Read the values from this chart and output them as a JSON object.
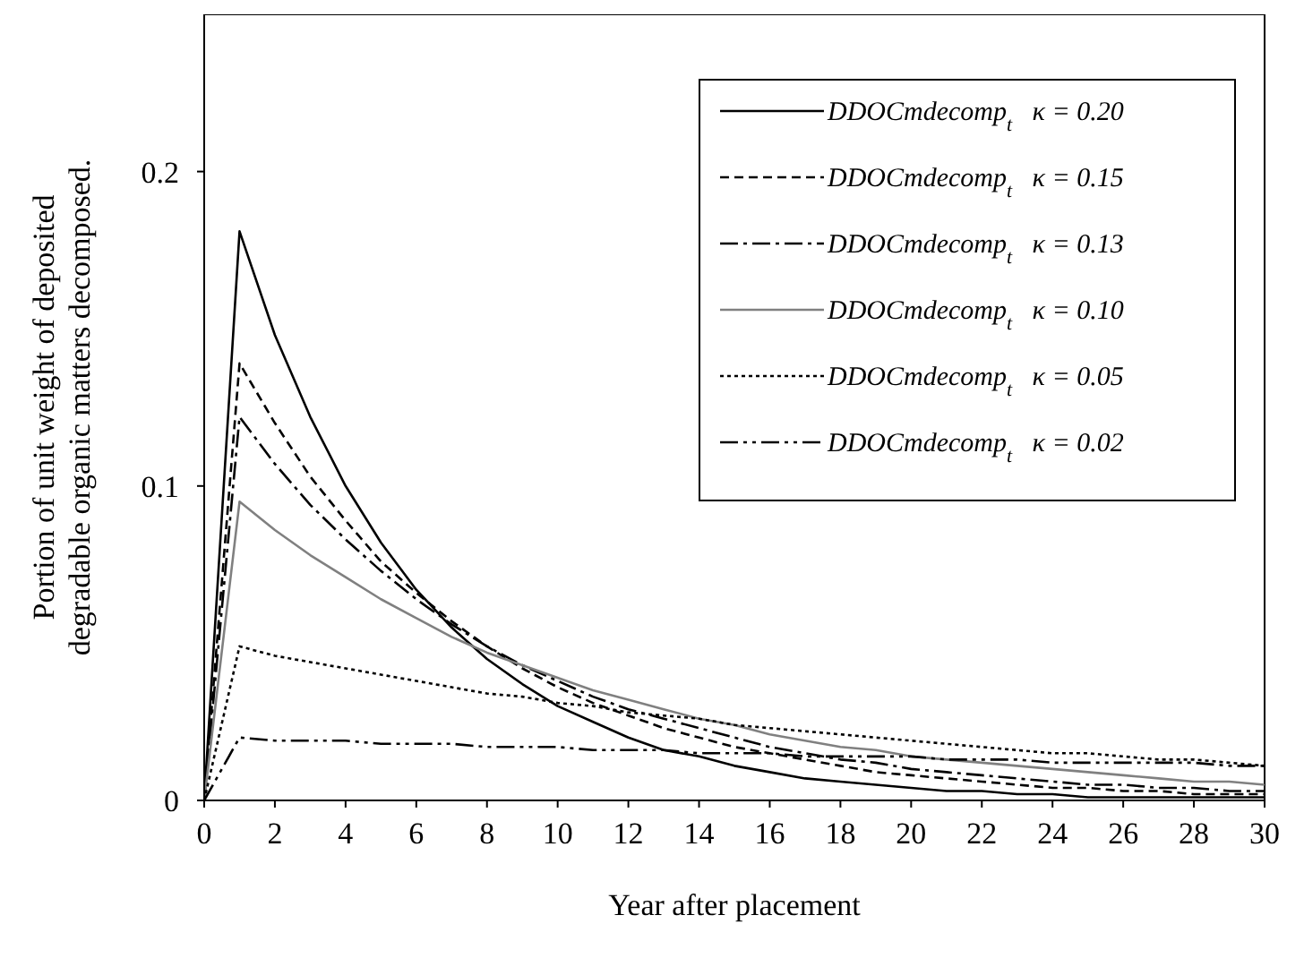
{
  "chart_data": {
    "type": "line",
    "xlabel": "Year after placement",
    "ylabel": "Portion of unit weight of deposited degradable organic matters decomposed.",
    "x": [
      0,
      1,
      2,
      3,
      4,
      5,
      6,
      7,
      8,
      9,
      10,
      11,
      12,
      13,
      14,
      15,
      16,
      17,
      18,
      19,
      20,
      21,
      22,
      23,
      24,
      25,
      26,
      27,
      28,
      29,
      30
    ],
    "xlim": [
      0,
      30
    ],
    "xticks": [
      0,
      2,
      4,
      6,
      8,
      10,
      12,
      14,
      16,
      18,
      20,
      22,
      24,
      26,
      28,
      30
    ],
    "ylim": [
      0,
      0.25
    ],
    "yticks": [
      0,
      0.1,
      0.2
    ],
    "grid": false,
    "legend": "top right",
    "marker": "none",
    "series": [
      {
        "name": "DDOCmdecomp$_{t}$  κ = 0.20",
        "color": "#000000",
        "line_style": "solid",
        "values": [
          0,
          0.181,
          0.148,
          0.122,
          0.1,
          0.082,
          0.067,
          0.055,
          0.045,
          0.037,
          0.03,
          0.025,
          0.02,
          0.016,
          0.014,
          0.011,
          0.009,
          0.007,
          0.006,
          0.005,
          0.004,
          0.003,
          0.003,
          0.002,
          0.002,
          0.001,
          0.001,
          0.001,
          0.001,
          0.001,
          0.001
        ]
      },
      {
        "name": "DDOCmdecomp$_{t}$  κ = 0.15",
        "color": "#000000",
        "line_style": "dashed",
        "values": [
          0,
          0.139,
          0.12,
          0.103,
          0.089,
          0.076,
          0.066,
          0.057,
          0.049,
          0.042,
          0.036,
          0.031,
          0.027,
          0.023,
          0.02,
          0.017,
          0.015,
          0.013,
          0.011,
          0.009,
          0.008,
          0.007,
          0.006,
          0.005,
          0.004,
          0.004,
          0.003,
          0.003,
          0.002,
          0.002,
          0.002
        ]
      },
      {
        "name": "DDOCmdecomp$_{t}$  κ = 0.13",
        "color": "#000000",
        "line_style": "dashdot",
        "values": [
          0,
          0.122,
          0.107,
          0.094,
          0.083,
          0.073,
          0.064,
          0.056,
          0.049,
          0.043,
          0.038,
          0.033,
          0.029,
          0.026,
          0.023,
          0.02,
          0.017,
          0.015,
          0.013,
          0.012,
          0.01,
          0.009,
          0.008,
          0.007,
          0.006,
          0.005,
          0.005,
          0.004,
          0.004,
          0.003,
          0.003
        ]
      },
      {
        "name": "DDOCmdecomp$_{t}$  κ = 0.10",
        "color": "#808080",
        "line_style": "solid",
        "values": [
          0,
          0.095,
          0.086,
          0.078,
          0.071,
          0.064,
          0.058,
          0.052,
          0.047,
          0.043,
          0.039,
          0.035,
          0.032,
          0.029,
          0.026,
          0.024,
          0.021,
          0.019,
          0.017,
          0.016,
          0.014,
          0.013,
          0.012,
          0.011,
          0.01,
          0.009,
          0.008,
          0.007,
          0.006,
          0.006,
          0.005
        ]
      },
      {
        "name": "DDOCmdecomp$_{t}$  κ = 0.05",
        "color": "#000000",
        "line_style": "dotted",
        "values": [
          0,
          0.049,
          0.046,
          0.044,
          0.042,
          0.04,
          0.038,
          0.036,
          0.034,
          0.033,
          0.031,
          0.03,
          0.028,
          0.027,
          0.026,
          0.024,
          0.023,
          0.022,
          0.021,
          0.02,
          0.019,
          0.018,
          0.017,
          0.016,
          0.015,
          0.015,
          0.014,
          0.013,
          0.013,
          0.012,
          0.011
        ]
      },
      {
        "name": "DDOCmdecomp$_{t}$  κ = 0.02",
        "color": "#000000",
        "line_style": "dashdotdot",
        "values": [
          0,
          0.02,
          0.019,
          0.019,
          0.019,
          0.018,
          0.018,
          0.018,
          0.017,
          0.017,
          0.017,
          0.016,
          0.016,
          0.016,
          0.015,
          0.015,
          0.015,
          0.014,
          0.014,
          0.014,
          0.014,
          0.013,
          0.013,
          0.013,
          0.012,
          0.012,
          0.012,
          0.012,
          0.012,
          0.011,
          0.011
        ]
      }
    ]
  }
}
